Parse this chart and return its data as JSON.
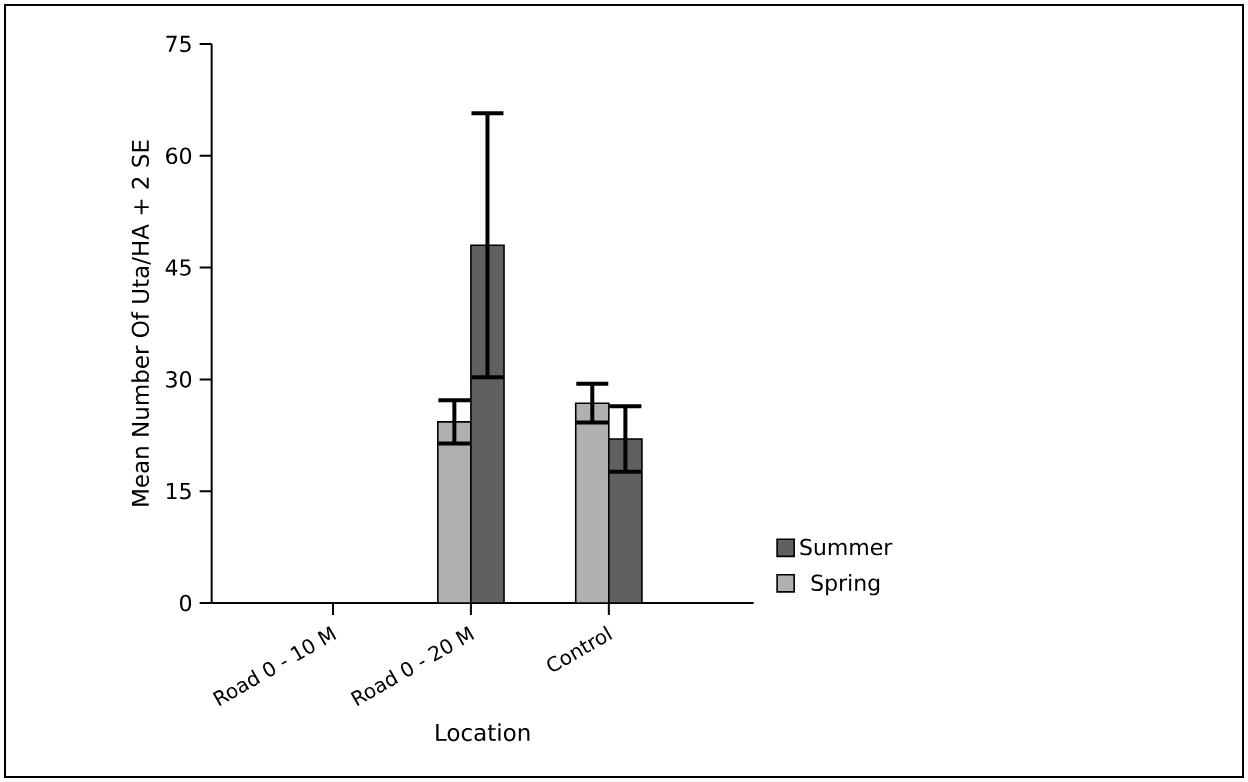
{
  "chart_data": {
    "type": "bar",
    "xlabel": "Location",
    "ylabel": "Mean Number Of Uta/HA + 2 SE",
    "categories": [
      "Road 0 - 10 M",
      "Road 0 - 20 M",
      "Control"
    ],
    "series": [
      {
        "name": "Spring",
        "color": "#b0b0b0",
        "values": [
          null,
          24.3,
          26.8
        ],
        "errors": [
          null,
          2.9,
          2.6
        ]
      },
      {
        "name": "Summer",
        "color": "#606060",
        "values": [
          null,
          48,
          22
        ],
        "errors": [
          null,
          17.7,
          4.4
        ]
      }
    ],
    "ylim": [
      0,
      75
    ],
    "yticks": [
      0,
      15,
      30,
      45,
      60,
      75
    ],
    "legend": "right",
    "grid": false
  }
}
